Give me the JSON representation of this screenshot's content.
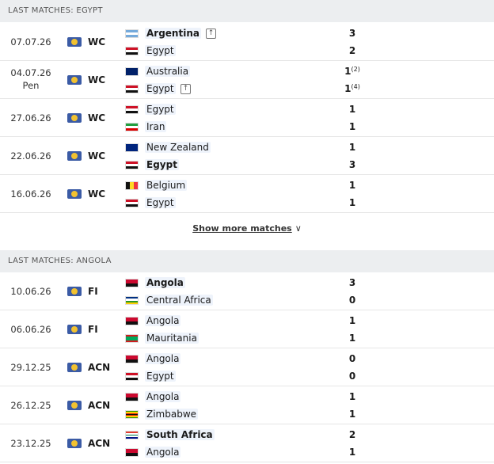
{
  "sections": [
    {
      "title": "LAST MATCHES: EGYPT",
      "matches": [
        {
          "date": "07.07.26",
          "competition": "WC",
          "home": {
            "name": "Argentina",
            "score": 3,
            "bold": true,
            "qualified": true
          },
          "away": {
            "name": "Egypt",
            "score": 2
          }
        },
        {
          "date": "04.07.26",
          "note": "Pen",
          "competition": "WC",
          "home": {
            "name": "Australia",
            "score": 1,
            "penalties": "(2)"
          },
          "away": {
            "name": "Egypt",
            "score": 1,
            "penalties": "(4)",
            "qualified": true
          }
        },
        {
          "date": "27.06.26",
          "competition": "WC",
          "home": {
            "name": "Egypt",
            "score": 1
          },
          "away": {
            "name": "Iran",
            "score": 1
          }
        },
        {
          "date": "22.06.26",
          "competition": "WC",
          "home": {
            "name": "New Zealand",
            "score": 1
          },
          "away": {
            "name": "Egypt",
            "score": 3,
            "bold": true
          }
        },
        {
          "date": "16.06.26",
          "competition": "WC",
          "home": {
            "name": "Belgium",
            "score": 1
          },
          "away": {
            "name": "Egypt",
            "score": 1
          }
        }
      ],
      "more": "Show more matches"
    },
    {
      "title": "LAST MATCHES: ANGOLA",
      "matches": [
        {
          "date": "10.06.26",
          "competition": "FI",
          "home": {
            "name": "Angola",
            "score": 3,
            "bold": true
          },
          "away": {
            "name": "Central Africa",
            "score": 0
          }
        },
        {
          "date": "06.06.26",
          "competition": "FI",
          "home": {
            "name": "Angola",
            "score": 1
          },
          "away": {
            "name": "Mauritania",
            "score": 1
          }
        },
        {
          "date": "29.12.25",
          "competition": "ACN",
          "home": {
            "name": "Angola",
            "score": 0
          },
          "away": {
            "name": "Egypt",
            "score": 0
          }
        },
        {
          "date": "26.12.25",
          "competition": "ACN",
          "home": {
            "name": "Angola",
            "score": 1
          },
          "away": {
            "name": "Zimbabwe",
            "score": 1
          }
        },
        {
          "date": "23.12.25",
          "competition": "ACN",
          "home": {
            "name": "South Africa",
            "score": 2,
            "bold": true
          },
          "away": {
            "name": "Angola",
            "score": 1
          }
        }
      ]
    }
  ]
}
